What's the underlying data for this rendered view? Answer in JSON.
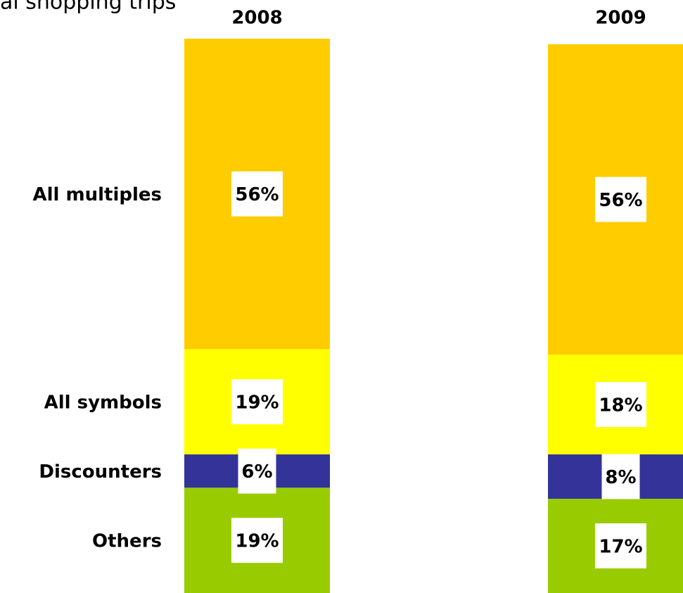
{
  "chart_data": {
    "type": "stacked_bar",
    "title": "al shopping trips",
    "categories": [
      "2008",
      "2009"
    ],
    "ylim": [
      0,
      100
    ],
    "series": [
      {
        "name": "Others",
        "color": "#99cc00",
        "values": [
          19,
          17
        ],
        "value_labels": [
          "19%",
          "17%"
        ]
      },
      {
        "name": "Discounters",
        "color": "#333399",
        "values": [
          6,
          8
        ],
        "value_labels": [
          "6%",
          "8%"
        ]
      },
      {
        "name": "All symbols",
        "color": "#ffff00",
        "values": [
          19,
          18
        ],
        "value_labels": [
          "19%",
          "18%"
        ]
      },
      {
        "name": "All multiples",
        "color": "#ffcc00",
        "values": [
          56,
          56
        ],
        "value_labels": [
          "56%",
          "56%"
        ]
      }
    ]
  }
}
